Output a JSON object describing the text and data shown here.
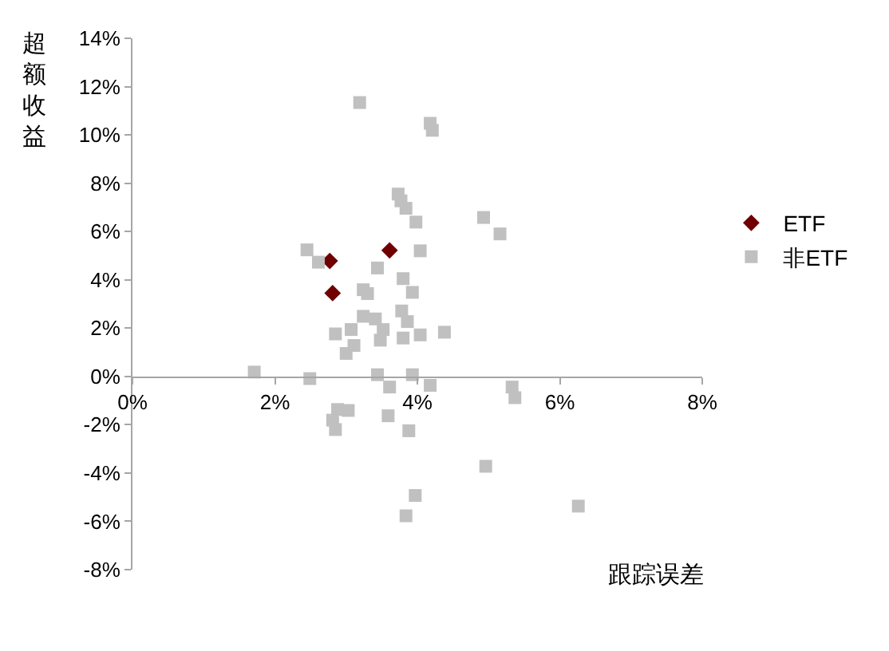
{
  "chart_data": {
    "type": "scatter",
    "xlabel": "跟踪误差",
    "ylabel": "超额收益",
    "xlim": [
      0,
      8
    ],
    "ylim": [
      -8,
      14
    ],
    "xticks": [
      {
        "value": 0,
        "label": "0%"
      },
      {
        "value": 2,
        "label": "2%"
      },
      {
        "value": 4,
        "label": "4%"
      },
      {
        "value": 6,
        "label": "6%"
      },
      {
        "value": 8,
        "label": "8%"
      }
    ],
    "yticks": [
      {
        "value": -8,
        "label": "-8%"
      },
      {
        "value": -6,
        "label": "-6%"
      },
      {
        "value": -4,
        "label": "-4%"
      },
      {
        "value": -2,
        "label": "-2%"
      },
      {
        "value": 0,
        "label": "0%"
      },
      {
        "value": 2,
        "label": "2%"
      },
      {
        "value": 4,
        "label": "4%"
      },
      {
        "value": 6,
        "label": "6%"
      },
      {
        "value": 8,
        "label": "8%"
      },
      {
        "value": 10,
        "label": "10%"
      },
      {
        "value": 12,
        "label": "12%"
      },
      {
        "value": 14,
        "label": "14%"
      }
    ],
    "legend": "right",
    "series": [
      {
        "name": "ETF",
        "color": "#700000",
        "marker": "diamond",
        "x": [
          2.77,
          3.61,
          2.81
        ],
        "values": [
          4.78,
          5.22,
          3.45
        ]
      },
      {
        "name": "非ETF",
        "color": "#c0c0c0",
        "marker": "square",
        "x": [
          3.19,
          4.18,
          4.21,
          3.73,
          3.77,
          3.84,
          3.98,
          4.93,
          5.16,
          2.45,
          2.61,
          4.04,
          3.44,
          3.8,
          3.24,
          3.3,
          3.93,
          3.24,
          3.41,
          3.78,
          3.86,
          3.07,
          2.85,
          3.52,
          3.48,
          3.8,
          4.04,
          4.38,
          3.11,
          3.0,
          1.71,
          2.49,
          3.44,
          3.61,
          3.93,
          4.18,
          2.81,
          3.03,
          2.88,
          2.85,
          3.59,
          3.88,
          5.33,
          5.37,
          4.96,
          6.26,
          3.97,
          3.84
        ],
        "values": [
          11.34,
          10.48,
          10.19,
          7.55,
          7.27,
          6.96,
          6.39,
          6.58,
          5.9,
          5.24,
          4.73,
          5.2,
          4.49,
          4.05,
          3.59,
          3.43,
          3.48,
          2.49,
          2.38,
          2.71,
          2.27,
          1.94,
          1.76,
          1.94,
          1.5,
          1.59,
          1.72,
          1.83,
          1.28,
          0.95,
          0.18,
          -0.09,
          0.07,
          -0.44,
          0.07,
          -0.37,
          -1.81,
          -1.41,
          -1.37,
          -2.2,
          -1.63,
          -2.25,
          -0.44,
          -0.88,
          -3.72,
          -5.37,
          -4.93,
          -5.77
        ]
      }
    ]
  }
}
